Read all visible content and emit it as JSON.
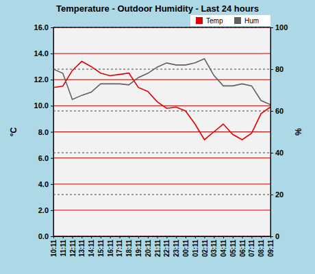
{
  "chart_data": {
    "type": "line",
    "title": "Temperature - Outdoor Humidity - Last 24 hours",
    "ylabel": "°C",
    "y2label": "%",
    "x": [
      "10:11",
      "11:11",
      "12:11",
      "13:11",
      "14:11",
      "15:11",
      "16:11",
      "17:11",
      "18:11",
      "19:11",
      "20:11",
      "21:11",
      "22:11",
      "23:11",
      "00:11",
      "01:11",
      "02:11",
      "03:11",
      "04:11",
      "05:11",
      "06:11",
      "07:11",
      "08:11",
      "09:11"
    ],
    "series": [
      {
        "name": "Temp",
        "color": "#e00000",
        "values": [
          11.4,
          11.5,
          12.7,
          13.4,
          13.0,
          12.5,
          12.3,
          12.4,
          12.5,
          11.4,
          11.1,
          10.3,
          9.8,
          9.9,
          9.6,
          8.6,
          7.4,
          8.0,
          8.6,
          7.8,
          7.4,
          7.9,
          9.4,
          9.9
        ]
      },
      {
        "name": "Hum",
        "color": "#606060",
        "axis": "y2",
        "values": [
          80,
          78,
          65.5,
          67.5,
          69,
          73,
          73,
          73,
          72.5,
          76,
          78,
          81,
          83,
          82,
          82,
          83,
          85,
          77,
          72,
          72,
          73,
          72,
          65,
          63
        ]
      }
    ],
    "ylim": [
      0,
      16
    ],
    "yticks": [
      {
        "value": 0,
        "label": "0.0"
      },
      {
        "value": 2,
        "label": "2.0"
      },
      {
        "value": 4,
        "label": "4.0"
      },
      {
        "value": 6,
        "label": "6.0"
      },
      {
        "value": 8,
        "label": "8.0"
      },
      {
        "value": 10,
        "label": "10.0"
      },
      {
        "value": 12,
        "label": "12.0"
      },
      {
        "value": 14,
        "label": "14.0"
      },
      {
        "value": 16,
        "label": "16.0"
      }
    ],
    "y2lim": [
      0,
      100
    ],
    "y2ticks": [
      0,
      20,
      40,
      60,
      80,
      100
    ],
    "grid": true,
    "legend": "top-right"
  }
}
